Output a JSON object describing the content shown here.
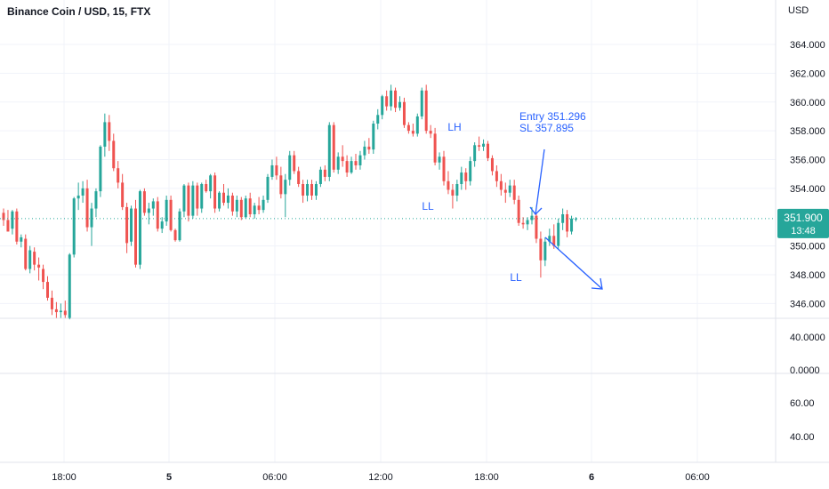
{
  "header": {
    "symbol_title": "Binance Coin / USD, 15, FTX",
    "currency": "USD"
  },
  "colors": {
    "up": "#26a69a",
    "down": "#ef5350",
    "annotation": "#2962ff",
    "badge_bg": "#26a69a",
    "grid": "#f0f3fa"
  },
  "price_axis": {
    "ticks": [
      "364.000",
      "362.000",
      "360.000",
      "358.000",
      "356.000",
      "354.000",
      "350.000",
      "348.000",
      "346.000"
    ],
    "last_price": "351.900",
    "countdown": "13:48"
  },
  "indicator_panes": [
    {
      "tick_labels": [
        "40.0000"
      ]
    },
    {
      "tick_labels": [
        "0.0000"
      ]
    },
    {
      "tick_labels": [
        "60.00",
        "40.00"
      ]
    }
  ],
  "time_axis": {
    "ticks": [
      "18:00",
      "5",
      "06:00",
      "12:00",
      "18:00",
      "6",
      "06:00"
    ]
  },
  "annotations": {
    "entry_label": "Entry 351.296",
    "sl_label": "SL 357.895",
    "swing_labels": [
      "LH",
      "LL",
      "LL"
    ]
  },
  "chart_data": {
    "type": "candlestick",
    "title": "Binance Coin / USD, 15, FTX",
    "y_unit": "USD",
    "ylim": [
      344.5,
      366.0
    ],
    "x_unit": "15-minute bars",
    "last_price": 351.9,
    "time_ticks": [
      "18:00",
      "5",
      "06:00",
      "12:00",
      "18:00",
      "6",
      "06:00"
    ],
    "candles_ohlc": [
      [
        352.3,
        352.6,
        351.4,
        351.8
      ],
      [
        351.8,
        352.5,
        351.0,
        351.0
      ],
      [
        351.2,
        352.5,
        350.8,
        352.4
      ],
      [
        352.4,
        352.6,
        350.1,
        350.3
      ],
      [
        350.3,
        350.8,
        349.9,
        350.6
      ],
      [
        350.5,
        350.8,
        348.3,
        348.4
      ],
      [
        348.4,
        350.0,
        348.1,
        349.7
      ],
      [
        349.6,
        349.9,
        348.3,
        348.7
      ],
      [
        348.7,
        349.2,
        347.6,
        348.5
      ],
      [
        348.4,
        348.7,
        347.0,
        347.5
      ],
      [
        347.5,
        347.9,
        346.2,
        346.4
      ],
      [
        346.4,
        346.9,
        345.2,
        345.6
      ],
      [
        345.6,
        346.1,
        345.0,
        345.4
      ],
      [
        345.4,
        346.0,
        345.0,
        345.5
      ],
      [
        345.5,
        346.2,
        345.0,
        345.2
      ],
      [
        345.0,
        349.5,
        344.9,
        349.4
      ],
      [
        349.4,
        353.4,
        349.2,
        353.3
      ],
      [
        353.3,
        354.4,
        352.5,
        353.5
      ],
      [
        353.5,
        354.5,
        353.0,
        354.0
      ],
      [
        354.0,
        354.6,
        351.0,
        351.3
      ],
      [
        351.3,
        353.0,
        350.0,
        352.6
      ],
      [
        352.6,
        354.0,
        352.0,
        353.8
      ],
      [
        353.8,
        357.0,
        353.4,
        356.9
      ],
      [
        356.9,
        359.2,
        356.2,
        358.6
      ],
      [
        358.6,
        359.1,
        356.6,
        357.3
      ],
      [
        357.3,
        357.8,
        355.2,
        355.4
      ],
      [
        355.4,
        355.9,
        354.0,
        354.4
      ],
      [
        354.4,
        355.0,
        352.5,
        352.7
      ],
      [
        352.7,
        353.0,
        349.5,
        350.2
      ],
      [
        350.3,
        352.8,
        350.0,
        352.6
      ],
      [
        352.6,
        353.2,
        348.5,
        348.7
      ],
      [
        348.7,
        353.9,
        348.4,
        353.8
      ],
      [
        353.8,
        354.0,
        352.1,
        352.3
      ],
      [
        352.3,
        353.0,
        351.5,
        352.6
      ],
      [
        352.6,
        353.3,
        352.1,
        353.1
      ],
      [
        353.1,
        353.4,
        351.0,
        351.2
      ],
      [
        351.2,
        352.0,
        350.9,
        351.7
      ],
      [
        351.7,
        353.5,
        351.4,
        353.2
      ],
      [
        353.2,
        353.5,
        351.0,
        351.1
      ],
      [
        351.1,
        351.2,
        350.3,
        350.4
      ],
      [
        350.4,
        352.6,
        350.3,
        352.4
      ],
      [
        352.4,
        354.3,
        352.0,
        354.2
      ],
      [
        354.2,
        354.4,
        351.7,
        352.1
      ],
      [
        352.1,
        354.5,
        351.9,
        354.2
      ],
      [
        354.2,
        354.4,
        352.1,
        352.6
      ],
      [
        352.6,
        354.4,
        352.3,
        354.3
      ],
      [
        354.3,
        354.6,
        353.7,
        353.8
      ],
      [
        353.8,
        355.0,
        353.3,
        354.9
      ],
      [
        354.9,
        355.1,
        352.3,
        352.6
      ],
      [
        352.6,
        353.8,
        352.4,
        353.7
      ],
      [
        353.7,
        354.3,
        352.8,
        353.0
      ],
      [
        353.0,
        354.0,
        352.6,
        353.5
      ],
      [
        353.5,
        353.7,
        352.1,
        352.4
      ],
      [
        352.4,
        353.5,
        352.0,
        353.2
      ],
      [
        353.2,
        353.4,
        351.8,
        352.0
      ],
      [
        352.0,
        353.5,
        351.9,
        353.3
      ],
      [
        353.3,
        353.7,
        352.0,
        352.2
      ],
      [
        352.2,
        353.0,
        351.9,
        352.8
      ],
      [
        352.8,
        353.4,
        352.2,
        352.5
      ],
      [
        352.5,
        353.5,
        352.3,
        353.2
      ],
      [
        353.2,
        355.0,
        353.0,
        354.8
      ],
      [
        354.8,
        356.0,
        354.6,
        355.6
      ],
      [
        355.6,
        356.2,
        354.6,
        354.9
      ],
      [
        354.9,
        355.5,
        353.3,
        353.6
      ],
      [
        353.6,
        355.0,
        352.0,
        354.6
      ],
      [
        354.6,
        356.6,
        354.2,
        356.3
      ],
      [
        356.3,
        356.6,
        355.0,
        355.2
      ],
      [
        355.2,
        355.5,
        354.1,
        354.3
      ],
      [
        354.3,
        354.6,
        353.0,
        353.5
      ],
      [
        353.5,
        354.6,
        353.1,
        354.3
      ],
      [
        354.3,
        354.6,
        353.2,
        353.5
      ],
      [
        353.5,
        354.5,
        353.2,
        354.3
      ],
      [
        354.3,
        355.5,
        354.1,
        355.3
      ],
      [
        355.3,
        355.6,
        354.5,
        354.8
      ],
      [
        354.8,
        358.6,
        354.5,
        358.4
      ],
      [
        358.4,
        358.6,
        355.1,
        355.3
      ],
      [
        355.3,
        356.5,
        355.0,
        356.2
      ],
      [
        356.2,
        357.0,
        355.5,
        355.9
      ],
      [
        355.9,
        356.3,
        354.8,
        355.1
      ],
      [
        355.1,
        356.2,
        355.0,
        355.9
      ],
      [
        355.9,
        356.4,
        355.3,
        355.6
      ],
      [
        355.6,
        356.6,
        355.3,
        356.3
      ],
      [
        356.3,
        357.3,
        356.0,
        356.9
      ],
      [
        356.9,
        357.5,
        356.4,
        356.7
      ],
      [
        356.7,
        358.7,
        356.4,
        358.5
      ],
      [
        358.5,
        359.5,
        358.1,
        359.1
      ],
      [
        359.1,
        360.5,
        358.8,
        360.4
      ],
      [
        360.4,
        360.8,
        359.4,
        359.7
      ],
      [
        359.7,
        361.2,
        359.4,
        360.8
      ],
      [
        360.8,
        361.0,
        359.3,
        359.6
      ],
      [
        359.6,
        360.4,
        359.4,
        360.0
      ],
      [
        360.0,
        360.3,
        358.2,
        358.4
      ],
      [
        358.4,
        358.6,
        357.8,
        358.0
      ],
      [
        358.0,
        358.5,
        357.6,
        357.8
      ],
      [
        357.8,
        359.2,
        357.6,
        359.0
      ],
      [
        359.0,
        361.0,
        358.8,
        360.8
      ],
      [
        360.8,
        361.2,
        357.8,
        358.0
      ],
      [
        358.0,
        358.4,
        357.5,
        357.8
      ],
      [
        357.8,
        358.2,
        355.6,
        355.8
      ],
      [
        355.8,
        356.5,
        355.3,
        356.2
      ],
      [
        356.2,
        356.6,
        354.2,
        354.5
      ],
      [
        354.5,
        355.2,
        353.6,
        353.9
      ],
      [
        353.9,
        354.3,
        352.6,
        353.5
      ],
      [
        353.5,
        354.6,
        353.1,
        354.3
      ],
      [
        354.3,
        355.5,
        353.9,
        355.1
      ],
      [
        355.1,
        355.4,
        353.9,
        354.5
      ],
      [
        354.5,
        356.2,
        354.2,
        355.9
      ],
      [
        355.9,
        357.2,
        355.5,
        357.0
      ],
      [
        357.0,
        357.6,
        356.6,
        356.9
      ],
      [
        356.9,
        357.4,
        356.6,
        357.1
      ],
      [
        357.1,
        357.3,
        355.9,
        356.1
      ],
      [
        356.1,
        356.3,
        354.9,
        355.2
      ],
      [
        355.2,
        355.6,
        354.1,
        354.5
      ],
      [
        354.5,
        355.0,
        353.5,
        353.9
      ],
      [
        353.9,
        354.4,
        353.0,
        353.7
      ],
      [
        353.7,
        354.6,
        353.4,
        354.2
      ],
      [
        354.2,
        354.6,
        352.9,
        353.2
      ],
      [
        353.2,
        353.5,
        351.4,
        351.6
      ],
      [
        351.6,
        352.0,
        351.2,
        351.5
      ],
      [
        351.5,
        352.0,
        351.1,
        351.8
      ],
      [
        351.8,
        352.7,
        351.5,
        352.1
      ],
      [
        352.1,
        352.3,
        350.2,
        350.5
      ],
      [
        350.5,
        351.0,
        347.8,
        349.0
      ],
      [
        349.0,
        350.6,
        348.6,
        350.3
      ],
      [
        350.3,
        351.2,
        350.0,
        350.7
      ],
      [
        350.7,
        351.5,
        349.8,
        350.0
      ],
      [
        350.0,
        351.9,
        349.8,
        351.6
      ],
      [
        351.6,
        352.6,
        351.1,
        352.2
      ],
      [
        352.2,
        352.5,
        350.6,
        351.0
      ],
      [
        351.0,
        352.1,
        350.8,
        351.9
      ],
      [
        351.9,
        352.0,
        351.7,
        351.9
      ]
    ]
  }
}
